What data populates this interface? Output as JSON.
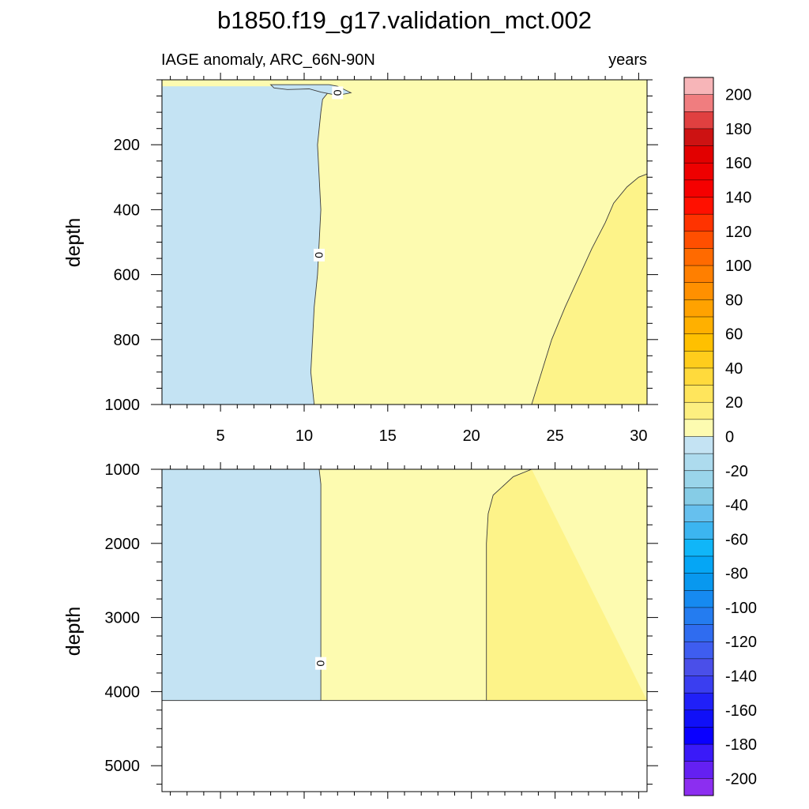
{
  "chart_data": {
    "type": "heatmap",
    "title": "b1850.f19_g17.validation_mct.002",
    "subtitle_left": "IAGE anomaly, ARC_66N-90N",
    "subtitle_right": "years",
    "xlabel": "",
    "ylabel": "depth",
    "x_ticks": [
      5,
      10,
      15,
      20,
      25,
      30
    ],
    "xlim": [
      1.5,
      30.5
    ],
    "panels": [
      {
        "name": "upper",
        "ylim": [
          0,
          1000
        ],
        "y_ticks": [
          200,
          400,
          600,
          800,
          1000
        ],
        "zero_contour": [
          [
            11.3,
            20
          ],
          [
            11.5,
            35
          ],
          [
            11.1,
            60
          ],
          [
            11.0,
            100
          ],
          [
            10.9,
            150
          ],
          [
            10.8,
            200
          ],
          [
            10.9,
            300
          ],
          [
            11.0,
            400
          ],
          [
            10.9,
            500
          ],
          [
            10.8,
            600
          ],
          [
            10.6,
            700
          ],
          [
            10.5,
            800
          ],
          [
            10.4,
            900
          ],
          [
            10.6,
            1000
          ]
        ],
        "contour_20": [
          [
            30.5,
            290
          ],
          [
            30.0,
            300
          ],
          [
            29.3,
            330
          ],
          [
            28.5,
            380
          ],
          [
            28.0,
            440
          ],
          [
            27.2,
            520
          ],
          [
            26.4,
            610
          ],
          [
            25.6,
            700
          ],
          [
            24.8,
            800
          ],
          [
            24.2,
            900
          ],
          [
            23.6,
            1000
          ]
        ],
        "surface_pocket": [
          [
            8.0,
            15
          ],
          [
            8.2,
            25
          ],
          [
            9.0,
            30
          ],
          [
            10.3,
            28
          ],
          [
            11.0,
            38
          ],
          [
            12.0,
            48
          ],
          [
            12.8,
            40
          ],
          [
            12.0,
            20
          ],
          [
            11.5,
            15
          ]
        ],
        "contour_labels": [
          {
            "x": 12.0,
            "y": 40,
            "text": "0"
          },
          {
            "x": 10.9,
            "y": 540,
            "text": "0"
          }
        ]
      },
      {
        "name": "lower",
        "ylim": [
          1000,
          5350
        ],
        "y_ticks": [
          1000,
          2000,
          3000,
          4000,
          5000
        ],
        "data_bottom": 4120,
        "zero_contour": [
          [
            10.9,
            1000
          ],
          [
            11.0,
            1200
          ],
          [
            11.0,
            1500
          ],
          [
            11.0,
            2000
          ],
          [
            11.0,
            3000
          ],
          [
            11.0,
            4120
          ]
        ],
        "contour_20": [
          [
            23.6,
            1000
          ],
          [
            22.5,
            1100
          ],
          [
            21.3,
            1350
          ],
          [
            21.0,
            1600
          ],
          [
            20.9,
            2000
          ],
          [
            20.9,
            3000
          ],
          [
            20.9,
            4120
          ]
        ],
        "contour_labels": [
          {
            "x": 11.0,
            "y": 3620,
            "text": "0"
          }
        ]
      }
    ],
    "levels": [
      -200,
      0,
      20
    ],
    "fill_colors": {
      "negative": "#c4e3f3",
      "low_positive": "#fdfbb0",
      "mid_positive": "#fdf389"
    },
    "colorbar": {
      "colors": [
        "#f7b5b8",
        "#f07d7f",
        "#e04040",
        "#cd1212",
        "#e20000",
        "#ee0000",
        "#f50000",
        "#ff1000",
        "#ff3300",
        "#ff4f00",
        "#ff6a00",
        "#ff7f00",
        "#ff9000",
        "#ffa200",
        "#ffb000",
        "#ffc000",
        "#ffcd1c",
        "#ffda3c",
        "#ffe55c",
        "#fdef80",
        "#fdfbb0",
        "#c4e3f3",
        "#addbee",
        "#9ad5ea",
        "#86cce6",
        "#66c0ee",
        "#3cb5f0",
        "#10b6f8",
        "#05a6f5",
        "#0898ef",
        "#168af0",
        "#247cf0",
        "#2f6cf0",
        "#3e5df0",
        "#4a4fe9",
        "#3a3ef0",
        "#2020f8",
        "#1010f8",
        "#0a00ff",
        "#3a1af8",
        "#6420f2",
        "#8c2ef0"
      ],
      "tick_labels": [
        "200",
        "180",
        "160",
        "140",
        "120",
        "100",
        "80",
        "60",
        "40",
        "20",
        "0",
        "-20",
        "-40",
        "-60",
        "-80",
        "-100",
        "-120",
        "-140",
        "-160",
        "-180",
        "-200"
      ]
    }
  }
}
